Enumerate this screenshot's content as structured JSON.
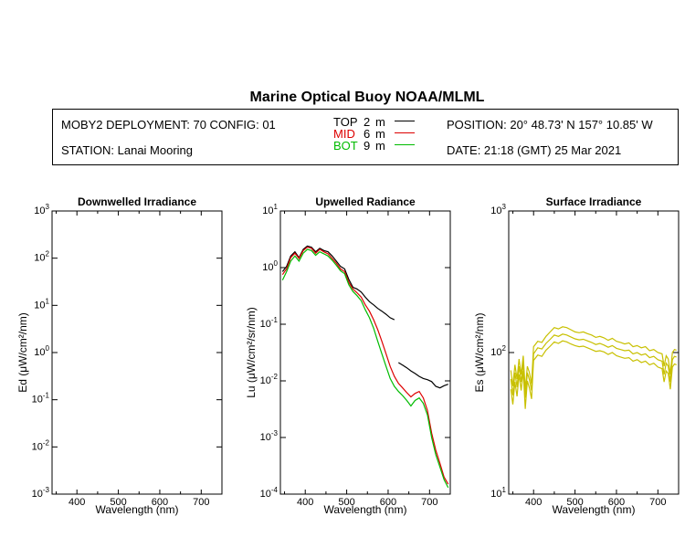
{
  "title": "Marine Optical Buoy NOAA/MLML",
  "header": {
    "deployment": "MOBY2 DEPLOYMENT: 70 CONFIG: 01",
    "station": "STATION: Lanai Mooring",
    "position": "POSITION: 20° 48.73' N   157° 10.85' W",
    "date": "DATE: 21:18 (GMT) 25 Mar 2021",
    "depths": [
      {
        "label": "TOP",
        "value": "2",
        "unit": "m",
        "color": "#000000"
      },
      {
        "label": "MID",
        "value": "6",
        "unit": "m",
        "color": "#dd0000"
      },
      {
        "label": "BOT",
        "value": "9",
        "unit": "m",
        "color": "#00bb00"
      }
    ]
  },
  "chart_data": [
    {
      "type": "line",
      "title": "Downwelled Irradiance",
      "xlabel": "Wavelength (nm)",
      "ylabel": "Ed  (μW/cm²/nm)",
      "xlim": [
        340,
        750
      ],
      "ylim": [
        0.001,
        1000
      ],
      "yscale": "log",
      "xticks": [
        400,
        500,
        600,
        700
      ],
      "yticks": [
        {
          "value": 0.001,
          "base": "10",
          "exp": "-3"
        },
        {
          "value": 0.01,
          "base": "10",
          "exp": "-2"
        },
        {
          "value": 0.1,
          "base": "10",
          "exp": "-1"
        },
        {
          "value": 1,
          "base": "10",
          "exp": "0"
        },
        {
          "value": 10,
          "base": "10",
          "exp": "1"
        },
        {
          "value": 100,
          "base": "10",
          "exp": "2"
        },
        {
          "value": 1000,
          "base": "10",
          "exp": "3"
        }
      ],
      "series": []
    },
    {
      "type": "line",
      "title": "Upwelled Radiance",
      "xlabel": "Wavelength (nm)",
      "ylabel": "Lu  (μW/cm²/sr/nm)",
      "xlim": [
        340,
        750
      ],
      "ylim": [
        0.0001,
        10
      ],
      "yscale": "log",
      "xticks": [
        400,
        500,
        600,
        700
      ],
      "yticks": [
        {
          "value": 0.0001,
          "base": "10",
          "exp": "-4"
        },
        {
          "value": 0.001,
          "base": "10",
          "exp": "-3"
        },
        {
          "value": 0.01,
          "base": "10",
          "exp": "-2"
        },
        {
          "value": 0.1,
          "base": "10",
          "exp": "-1"
        },
        {
          "value": 1,
          "base": "10",
          "exp": "0"
        },
        {
          "value": 10,
          "base": "10",
          "exp": "1"
        }
      ],
      "series": [
        {
          "color": "#000000",
          "segments": [
            {
              "x": [
                345,
                355,
                365,
                375,
                385,
                395,
                405,
                415,
                425,
                435,
                445,
                455,
                465,
                475,
                485,
                495,
                505,
                515,
                525,
                535,
                545,
                555,
                565,
                575,
                585,
                595,
                605,
                615
              ],
              "y": [
                0.85,
                1.05,
                1.6,
                1.9,
                1.5,
                2.1,
                2.4,
                2.3,
                1.9,
                2.2,
                2.0,
                1.9,
                1.6,
                1.3,
                1.05,
                0.95,
                0.62,
                0.45,
                0.42,
                0.37,
                0.3,
                0.25,
                0.22,
                0.19,
                0.17,
                0.15,
                0.13,
                0.12
              ]
            },
            {
              "x": [
                625,
                635,
                645,
                655,
                665,
                675,
                685,
                695,
                705,
                715,
                725,
                735,
                745
              ],
              "y": [
                0.021,
                0.019,
                0.017,
                0.015,
                0.0135,
                0.012,
                0.011,
                0.0105,
                0.0097,
                0.008,
                0.0075,
                0.0082,
                0.0087
              ]
            }
          ]
        },
        {
          "color": "#dd0000",
          "segments": [
            {
              "x": [
                345,
                355,
                365,
                375,
                385,
                395,
                405,
                415,
                425,
                435,
                445,
                455,
                465,
                475,
                485,
                495,
                505,
                515,
                525,
                535,
                545,
                555,
                565,
                575,
                585,
                595,
                605,
                615,
                625,
                635,
                645,
                655,
                665,
                675,
                685,
                695,
                705,
                715,
                725,
                735,
                745
              ],
              "y": [
                0.75,
                0.95,
                1.5,
                1.8,
                1.45,
                2.0,
                2.3,
                2.2,
                1.8,
                2.1,
                1.9,
                1.75,
                1.45,
                1.2,
                0.95,
                0.85,
                0.55,
                0.42,
                0.36,
                0.3,
                0.22,
                0.17,
                0.12,
                0.08,
                0.05,
                0.03,
                0.018,
                0.012,
                0.009,
                0.0075,
                0.0062,
                0.0052,
                0.006,
                0.0065,
                0.005,
                0.003,
                0.0012,
                0.0006,
                0.00035,
                0.0002,
                0.00015
              ]
            }
          ]
        },
        {
          "color": "#00bb00",
          "segments": [
            {
              "x": [
                345,
                355,
                365,
                375,
                385,
                395,
                405,
                415,
                425,
                435,
                445,
                455,
                465,
                475,
                485,
                495,
                505,
                515,
                525,
                535,
                545,
                555,
                565,
                575,
                585,
                595,
                605,
                615,
                625,
                635,
                645,
                655,
                665,
                675,
                685,
                695,
                705,
                715,
                725,
                735,
                745
              ],
              "y": [
                0.6,
                0.85,
                1.3,
                1.6,
                1.3,
                1.8,
                2.1,
                2.0,
                1.65,
                1.9,
                1.75,
                1.6,
                1.35,
                1.1,
                0.88,
                0.78,
                0.5,
                0.38,
                0.32,
                0.26,
                0.18,
                0.13,
                0.085,
                0.05,
                0.03,
                0.018,
                0.011,
                0.008,
                0.0065,
                0.0055,
                0.0045,
                0.0036,
                0.0045,
                0.005,
                0.004,
                0.0025,
                0.001,
                0.0005,
                0.0003,
                0.00018,
                0.00013
              ]
            }
          ]
        }
      ]
    },
    {
      "type": "line",
      "title": "Surface Irradiance",
      "xlabel": "Wavelength (nm)",
      "ylabel": "Es  (μW/cm²/nm)",
      "xlim": [
        340,
        750
      ],
      "ylim": [
        10,
        1000
      ],
      "yscale": "log",
      "xticks": [
        400,
        500,
        600,
        700
      ],
      "yticks": [
        {
          "value": 10,
          "base": "10",
          "exp": "1"
        },
        {
          "value": 100,
          "base": "10",
          "exp": "2"
        },
        {
          "value": 1000,
          "base": "10",
          "exp": "3"
        }
      ],
      "series": [
        {
          "color": "#c8c000",
          "segments": [
            {
              "x": [
                345,
                350,
                355,
                360,
                365,
                370,
                375,
                380,
                385,
                390,
                395,
                400,
                410,
                420,
                430,
                440,
                450,
                460,
                470,
                480,
                490,
                500,
                510,
                520,
                530,
                540,
                550,
                560,
                570,
                580,
                590,
                600,
                610,
                620,
                630,
                640,
                650,
                660,
                670,
                680,
                690,
                700,
                710,
                715,
                720,
                725,
                730,
                735,
                740,
                745
              ],
              "y": [
                75,
                58,
                82,
                65,
                90,
                70,
                95,
                55,
                80,
                72,
                60,
                110,
                120,
                118,
                130,
                140,
                150,
                147,
                152,
                150,
                145,
                140,
                138,
                140,
                136,
                133,
                128,
                130,
                127,
                122,
                126,
                120,
                118,
                115,
                117,
                110,
                112,
                108,
                110,
                103,
                105,
                100,
                98,
                80,
                95,
                90,
                70,
                100,
                105,
                104
              ]
            }
          ]
        },
        {
          "color": "#c8c000",
          "segments": [
            {
              "x": [
                345,
                350,
                355,
                360,
                365,
                370,
                375,
                380,
                385,
                390,
                395,
                400,
                410,
                420,
                430,
                440,
                450,
                460,
                470,
                480,
                490,
                500,
                510,
                520,
                530,
                540,
                550,
                560,
                570,
                580,
                590,
                600,
                610,
                620,
                630,
                640,
                650,
                660,
                670,
                680,
                690,
                700,
                710,
                715,
                720,
                725,
                730,
                735,
                740,
                745
              ],
              "y": [
                65,
                50,
                72,
                57,
                80,
                62,
                85,
                48,
                72,
                64,
                54,
                98,
                108,
                106,
                116,
                124,
                133,
                130,
                135,
                133,
                129,
                125,
                123,
                124,
                121,
                118,
                114,
                116,
                113,
                109,
                112,
                107,
                105,
                103,
                104,
                98,
                100,
                96,
                98,
                92,
                94,
                89,
                87,
                70,
                84,
                80,
                62,
                89,
                94,
                93
              ]
            }
          ]
        },
        {
          "color": "#c8c000",
          "segments": [
            {
              "x": [
                345,
                350,
                355,
                360,
                365,
                370,
                375,
                380,
                385,
                390,
                395,
                400,
                410,
                420,
                430,
                440,
                450,
                460,
                470,
                480,
                490,
                500,
                510,
                520,
                530,
                540,
                550,
                560,
                570,
                580,
                590,
                600,
                610,
                620,
                630,
                640,
                650,
                660,
                670,
                680,
                690,
                700,
                710,
                715,
                720,
                725,
                730,
                735,
                740,
                745
              ],
              "y": [
                55,
                43,
                62,
                49,
                70,
                54,
                74,
                40,
                63,
                56,
                47,
                88,
                96,
                94,
                104,
                111,
                119,
                116,
                121,
                119,
                115,
                112,
                110,
                111,
                108,
                105,
                102,
                103,
                101,
                97,
                100,
                95,
                93,
                91,
                92,
                87,
                89,
                85,
                87,
                82,
                84,
                79,
                77,
                62,
                74,
                71,
                55,
                79,
                83,
                82
              ]
            }
          ]
        }
      ]
    }
  ]
}
